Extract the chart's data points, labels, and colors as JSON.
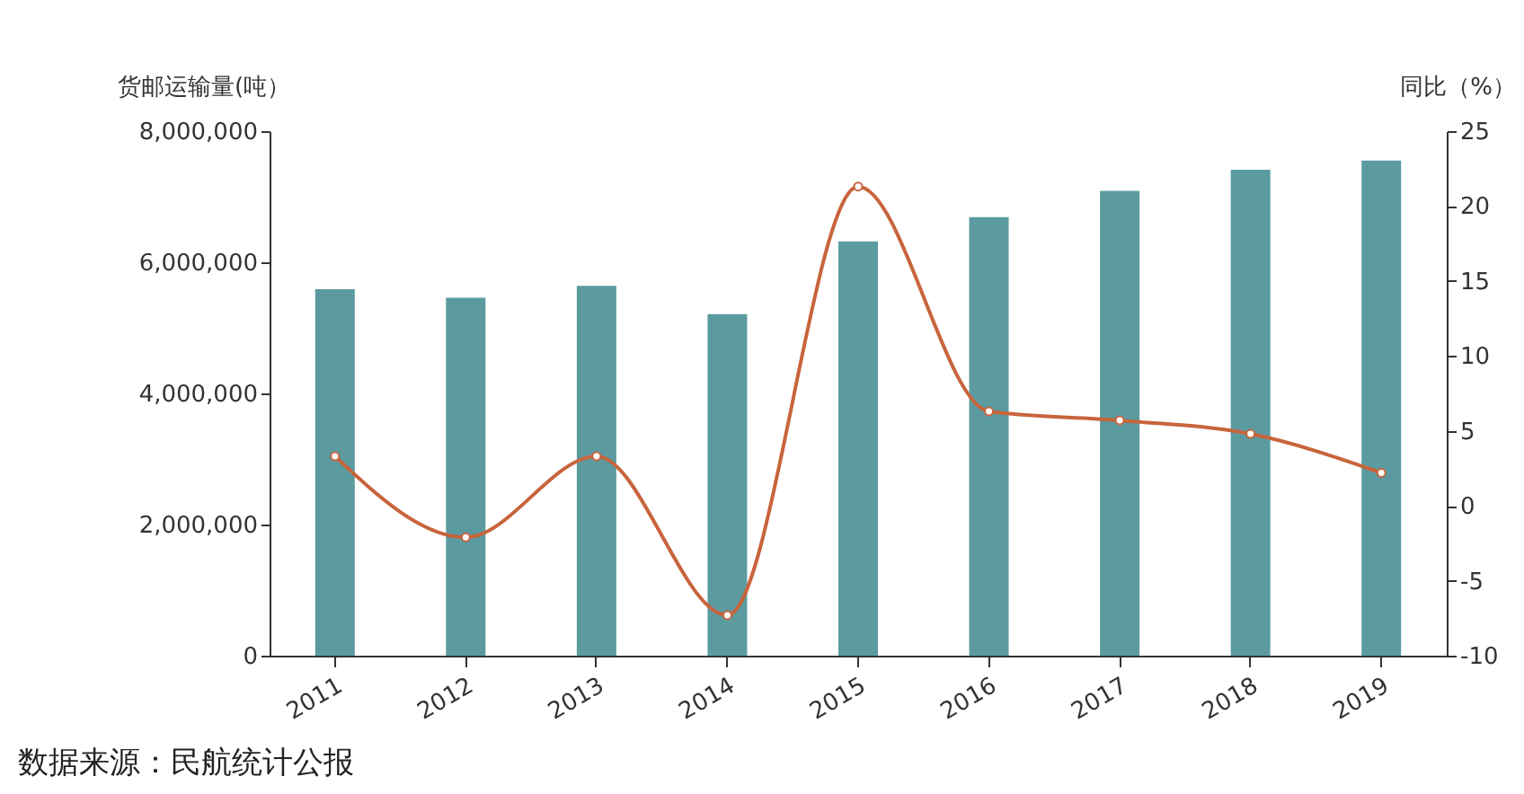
{
  "chart_data": {
    "type": "bar",
    "ylabel": "货邮运输量(吨）",
    "y2label": "同比（%）",
    "categories": [
      "2011",
      "2012",
      "2013",
      "2014",
      "2015",
      "2016",
      "2017",
      "2018",
      "2019"
    ],
    "series": [
      {
        "color": "#5b9ba0",
        "values": [
          5590000,
          5460000,
          5640000,
          5210000,
          6320000,
          6690000,
          7090000,
          7410000,
          7550000
        ]
      },
      {
        "type": "line",
        "axis": "y2",
        "color": "#c8643c",
        "values": [
          3.3,
          -2.1,
          3.3,
          -7.3,
          21.3,
          6.3,
          5.7,
          4.8,
          2.2
        ]
      }
    ],
    "ylim": [
      0,
      8000000
    ],
    "yticks": [
      0,
      {
        "value": 2000000,
        "label": "2,000,000"
      },
      {
        "value": 4000000,
        "label": "4,000,000"
      },
      {
        "value": 6000000,
        "label": "6,000,000"
      },
      {
        "value": 8000000,
        "label": "8,000,000"
      }
    ],
    "y2lim": [
      -10,
      25
    ],
    "y2ticks": [
      -10,
      -5,
      0,
      5,
      10,
      15,
      20,
      25
    ],
    "grid": false,
    "marker": "circle",
    "line_style": "solid",
    "annotations": [
      "数据来源：民航统计公报"
    ]
  }
}
